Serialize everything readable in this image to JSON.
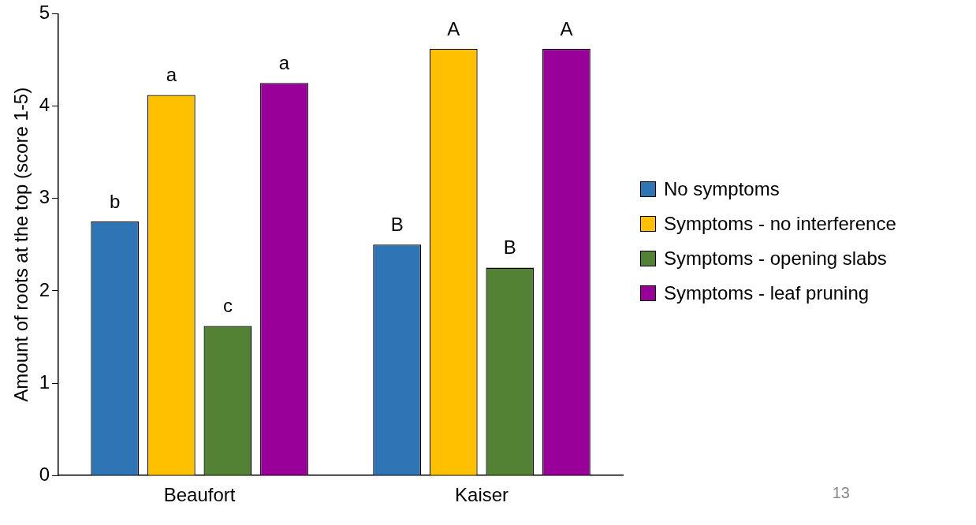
{
  "chart_data": {
    "type": "bar",
    "ylabel": "Amount of roots at the top (score 1-5)",
    "categories": [
      "Beaufort",
      "Kaiser"
    ],
    "series": [
      {
        "name": "No symptoms",
        "color": "#2e75b6",
        "values": [
          2.75,
          2.5
        ],
        "value_labels": [
          "b",
          "B"
        ]
      },
      {
        "name": "Symptoms - no interference",
        "color": "#ffc000",
        "values": [
          4.12,
          4.62
        ],
        "value_labels": [
          "a",
          "A"
        ]
      },
      {
        "name": "Symptoms - opening slabs",
        "color": "#548235",
        "values": [
          1.62,
          2.25
        ],
        "value_labels": [
          "c",
          "B"
        ]
      },
      {
        "name": "Symptoms - leaf pruning",
        "color": "#990099",
        "values": [
          4.25,
          4.62
        ],
        "value_labels": [
          "a",
          "A"
        ]
      }
    ],
    "ylim": [
      0,
      5
    ],
    "yticks": [
      0,
      1,
      2,
      3,
      4,
      5
    ],
    "grid": false,
    "legend": "right",
    "annotations": [
      "13"
    ]
  }
}
